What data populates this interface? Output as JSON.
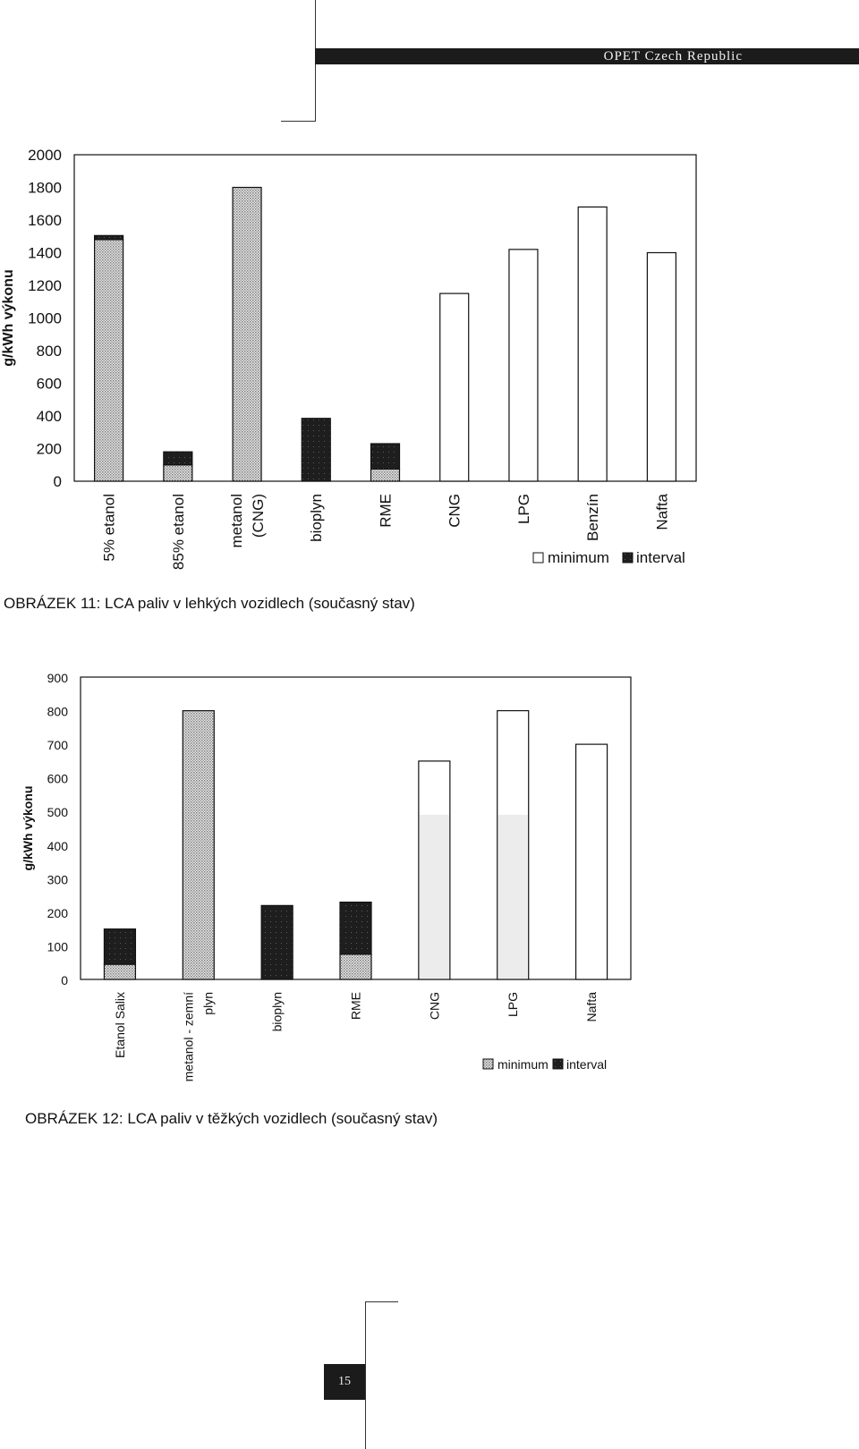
{
  "header": {
    "title": "OPET Czech Republic"
  },
  "page_number": "15",
  "chart_data": [
    {
      "type": "bar",
      "stacked": true,
      "ylabel": "g/kWh výkonu",
      "ylim": [
        0,
        2000
      ],
      "yticks": [
        0,
        200,
        400,
        600,
        800,
        1000,
        1200,
        1400,
        1600,
        1800,
        2000
      ],
      "categories": [
        "5% etanol",
        "85% etanol",
        "metanol (CNG)",
        "bioplyn",
        "RME",
        "CNG",
        "LPG",
        "Benzín",
        "Nafta"
      ],
      "series": [
        {
          "name": "minimum",
          "values": [
            1480,
            100,
            1800,
            0,
            75,
            1150,
            1420,
            1680,
            1400
          ]
        },
        {
          "name": "interval",
          "values": [
            25,
            80,
            0,
            385,
            155,
            0,
            0,
            0,
            0
          ]
        }
      ],
      "legend": "bottom-right",
      "grid": false,
      "caption": "OBRÁZEK 11: LCA paliv v lehkých vozidlech (současný stav)",
      "colors": {
        "minimum_pattern": "#c8c8c8",
        "interval": "#1e1e1e",
        "plain": "#ffffff"
      }
    },
    {
      "type": "bar",
      "stacked": true,
      "ylabel": "g/kWh výkonu",
      "ylim": [
        0,
        900
      ],
      "yticks": [
        0,
        100,
        200,
        300,
        400,
        500,
        600,
        700,
        800,
        900
      ],
      "categories": [
        "Etanol Salix",
        "metanol - zemní plyn",
        "bioplyn",
        "RME",
        "CNG",
        "LPG",
        "Nafta"
      ],
      "series": [
        {
          "name": "minimum",
          "values": [
            45,
            800,
            0,
            75,
            650,
            800,
            700
          ]
        },
        {
          "name": "interval",
          "values": [
            105,
            0,
            220,
            155,
            0,
            0,
            0
          ]
        }
      ],
      "legend": "bottom-right",
      "grid": false,
      "caption": "OBRÁZEK 12: LCA paliv v těžkých vozidlech (současný stav)",
      "colors": {
        "minimum_pattern": "#c8c8c8",
        "interval": "#1e1e1e",
        "plain": "#ffffff"
      }
    }
  ]
}
